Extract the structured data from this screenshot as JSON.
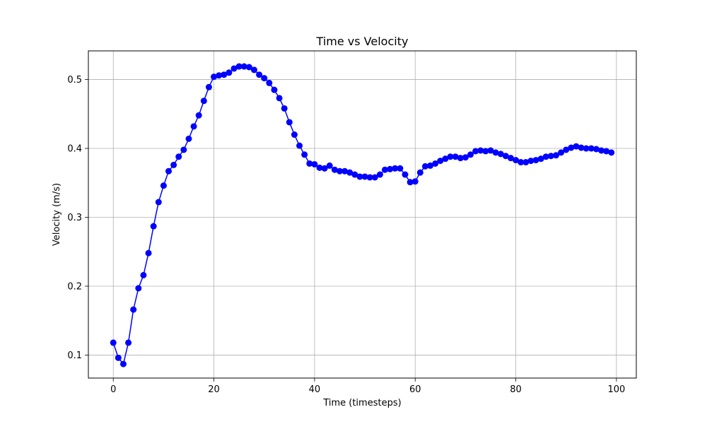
{
  "chart_data": {
    "type": "line",
    "title": "Time vs Velocity",
    "xlabel": "Time (timesteps)",
    "ylabel": "Velocity (m/s)",
    "xlim": [
      -4.95,
      103.95
    ],
    "ylim": [
      0.0666,
      0.5416
    ],
    "xticks": [
      0,
      20,
      40,
      60,
      80,
      100
    ],
    "yticks": [
      0.1,
      0.2,
      0.3,
      0.4,
      0.5
    ],
    "xtick_labels": [
      "0",
      "20",
      "40",
      "60",
      "80",
      "100"
    ],
    "ytick_labels": [
      "0.1",
      "0.2",
      "0.3",
      "0.4",
      "0.5"
    ],
    "grid": true,
    "marker": "circle",
    "series": [
      {
        "color": "#0000ff",
        "x": [
          0,
          1,
          2,
          3,
          4,
          5,
          6,
          7,
          8,
          9,
          10,
          11,
          12,
          13,
          14,
          15,
          16,
          17,
          18,
          19,
          20,
          21,
          22,
          23,
          24,
          25,
          26,
          27,
          28,
          29,
          30,
          31,
          32,
          33,
          34,
          35,
          36,
          37,
          38,
          39,
          40,
          41,
          42,
          43,
          44,
          45,
          46,
          47,
          48,
          49,
          50,
          51,
          52,
          53,
          54,
          55,
          56,
          57,
          58,
          59,
          60,
          61,
          62,
          63,
          64,
          65,
          66,
          67,
          68,
          69,
          70,
          71,
          72,
          73,
          74,
          75,
          76,
          77,
          78,
          79,
          80,
          81,
          82,
          83,
          84,
          85,
          86,
          87,
          88,
          89,
          90,
          91,
          92,
          93,
          94,
          95,
          96,
          97,
          98,
          99
        ],
        "y": [
          0.118,
          0.096,
          0.087,
          0.118,
          0.166,
          0.197,
          0.216,
          0.248,
          0.287,
          0.322,
          0.346,
          0.367,
          0.376,
          0.388,
          0.398,
          0.414,
          0.432,
          0.448,
          0.469,
          0.489,
          0.504,
          0.506,
          0.507,
          0.51,
          0.516,
          0.519,
          0.519,
          0.518,
          0.514,
          0.507,
          0.502,
          0.495,
          0.485,
          0.473,
          0.458,
          0.438,
          0.42,
          0.404,
          0.391,
          0.378,
          0.377,
          0.372,
          0.371,
          0.375,
          0.369,
          0.367,
          0.367,
          0.365,
          0.362,
          0.359,
          0.359,
          0.358,
          0.358,
          0.362,
          0.369,
          0.37,
          0.371,
          0.371,
          0.362,
          0.351,
          0.352,
          0.365,
          0.374,
          0.375,
          0.378,
          0.382,
          0.385,
          0.388,
          0.388,
          0.386,
          0.387,
          0.391,
          0.396,
          0.397,
          0.396,
          0.397,
          0.394,
          0.392,
          0.389,
          0.386,
          0.383,
          0.38,
          0.38,
          0.382,
          0.383,
          0.385,
          0.388,
          0.389,
          0.39,
          0.394,
          0.398,
          0.401,
          0.403,
          0.401,
          0.4,
          0.4,
          0.399,
          0.397,
          0.396,
          0.394
        ]
      }
    ]
  }
}
